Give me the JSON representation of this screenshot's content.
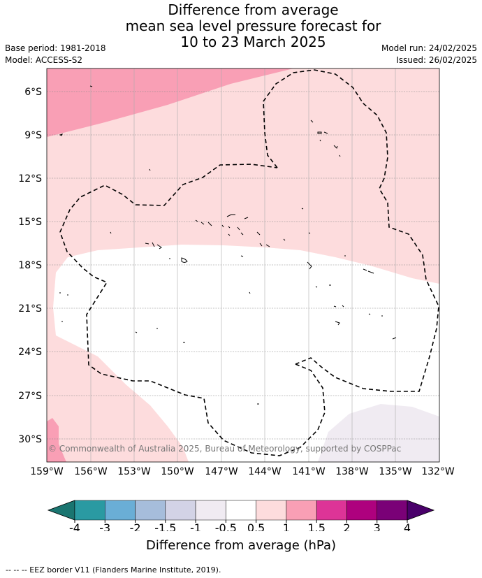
{
  "title": {
    "line1": "Difference from average",
    "line2": "mean sea level pressure forecast for",
    "line3": "10 to 23 March 2025"
  },
  "meta": {
    "base_period": "Base period: 1981-2018",
    "model": "Model: ACCESS-S2",
    "model_run": "Model run: 24/02/2025",
    "issued": "Issued: 26/02/2025"
  },
  "map": {
    "lat_labels": [
      "6°S",
      "9°S",
      "12°S",
      "15°S",
      "18°S",
      "21°S",
      "24°S",
      "27°S",
      "30°S"
    ],
    "lon_labels": [
      "159°W",
      "156°W",
      "153°W",
      "150°W",
      "147°W",
      "144°W",
      "141°W",
      "138°W",
      "135°W",
      "132°W"
    ],
    "copyright": "© Commonwealth of Australia 2025, Bureau of Meteorology, supported by COSPPac",
    "fill_colors": {
      "band_1_to_1_5": "#f99fb5",
      "band_0_5_to_1": "#fddcdd",
      "band_minus_0_5_to_0_5": "#ffffff",
      "band_minus_1_to_minus_0_5": "#f0ebf2"
    }
  },
  "colorbar": {
    "ticks": [
      "-4",
      "-3",
      "-2",
      "-1.5",
      "-1",
      "-0.5",
      "0.5",
      "1",
      "1.5",
      "2",
      "3",
      "4"
    ],
    "colors": [
      "#1a7570",
      "#2a9aa2",
      "#6aaed6",
      "#a6bddb",
      "#d3d3e6",
      "#f0ebf2",
      "#ffffff",
      "#fddcdd",
      "#f99fb5",
      "#dd3497",
      "#ae017e",
      "#7a0177",
      "#49006a"
    ],
    "label": "Difference from average (hPa)"
  },
  "footer": "--  --  -- EEZ border V11 (Flanders Marine Institute, 2019)."
}
